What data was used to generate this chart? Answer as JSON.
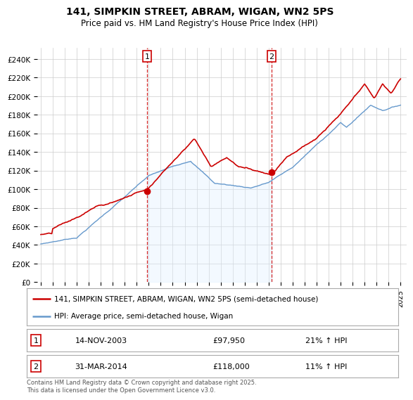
{
  "title": "141, SIMPKIN STREET, ABRAM, WIGAN, WN2 5PS",
  "subtitle": "Price paid vs. HM Land Registry's House Price Index (HPI)",
  "ylim": [
    0,
    252000
  ],
  "yticks": [
    0,
    20000,
    40000,
    60000,
    80000,
    100000,
    120000,
    140000,
    160000,
    180000,
    200000,
    220000,
    240000
  ],
  "ytick_labels": [
    "£0",
    "£20K",
    "£40K",
    "£60K",
    "£80K",
    "£100K",
    "£120K",
    "£140K",
    "£160K",
    "£180K",
    "£200K",
    "£220K",
    "£240K"
  ],
  "sale1_date": "14-NOV-2003",
  "sale1_price": 97950,
  "sale1_pct": "21%",
  "sale2_date": "31-MAR-2014",
  "sale2_price": 118000,
  "sale2_pct": "11%",
  "sale1_x": 2003.87,
  "sale2_x": 2014.25,
  "legend_label_red": "141, SIMPKIN STREET, ABRAM, WIGAN, WN2 5PS (semi-detached house)",
  "legend_label_blue": "HPI: Average price, semi-detached house, Wigan",
  "footer": "Contains HM Land Registry data © Crown copyright and database right 2025.\nThis data is licensed under the Open Government Licence v3.0.",
  "red_color": "#cc0000",
  "blue_color": "#6699cc",
  "blue_fill_color": "#ddeeff",
  "background_color": "#ffffff",
  "grid_color": "#cccccc",
  "xlim_left": 1994.7,
  "xlim_right": 2025.5
}
